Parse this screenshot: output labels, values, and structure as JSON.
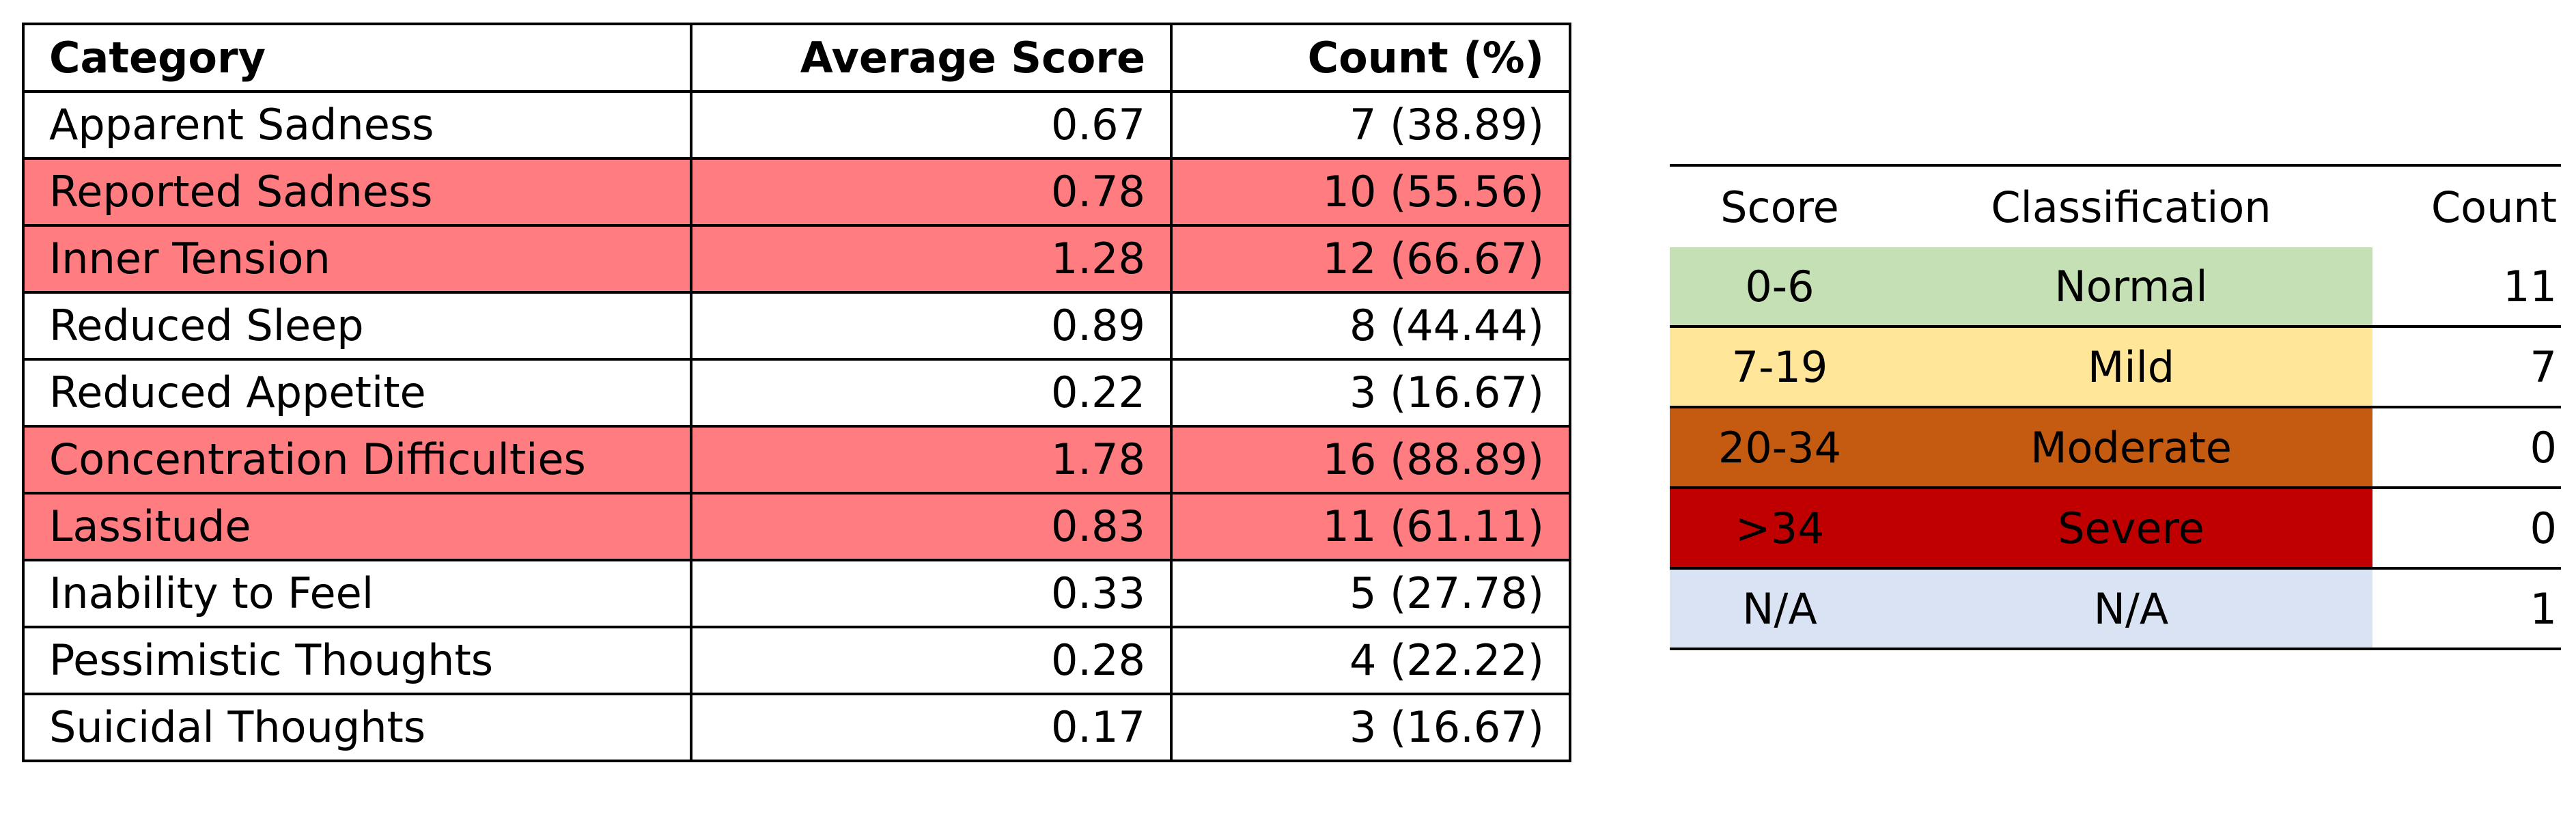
{
  "scores_table": {
    "headers": {
      "category": "Category",
      "average_score": "Average Score",
      "count": "Count (%)"
    },
    "highlight_color": "#ff7c80",
    "rows": [
      {
        "category": "Apparent Sadness",
        "average_score": "0.67",
        "count": "7 (38.89)",
        "highlighted": false
      },
      {
        "category": "Reported Sadness",
        "average_score": "0.78",
        "count": "10 (55.56)",
        "highlighted": true
      },
      {
        "category": "Inner Tension",
        "average_score": "1.28",
        "count": "12 (66.67)",
        "highlighted": true
      },
      {
        "category": "Reduced Sleep",
        "average_score": "0.89",
        "count": "8 (44.44)",
        "highlighted": false
      },
      {
        "category": "Reduced Appetite",
        "average_score": "0.22",
        "count": "3 (16.67)",
        "highlighted": false
      },
      {
        "category": "Concentration Difficulties",
        "average_score": "1.78",
        "count": "16 (88.89)",
        "highlighted": true
      },
      {
        "category": "Lassitude",
        "average_score": "0.83",
        "count": "11 (61.11)",
        "highlighted": true
      },
      {
        "category": "Inability to Feel",
        "average_score": "0.33",
        "count": "5 (27.78)",
        "highlighted": false
      },
      {
        "category": "Pessimistic Thoughts",
        "average_score": "0.28",
        "count": "4 (22.22)",
        "highlighted": false
      },
      {
        "category": "Suicidal Thoughts",
        "average_score": "0.17",
        "count": "3 (16.67)",
        "highlighted": false
      }
    ]
  },
  "classification_table": {
    "headers": {
      "score": "Score",
      "classification": "Classification",
      "count": "Count"
    },
    "rows": [
      {
        "score": "0-6",
        "classification": "Normal",
        "count": "11",
        "color": "#c5e0b4"
      },
      {
        "score": "7-19",
        "classification": "Mild",
        "count": "7",
        "color": "#ffe699"
      },
      {
        "score": "20-34",
        "classification": "Moderate",
        "count": "0",
        "color": "#c55a11"
      },
      {
        "score": ">34",
        "classification": "Severe",
        "count": "0",
        "color": "#c00000"
      },
      {
        "score": "N/A",
        "classification": "N/A",
        "count": "1",
        "color": "#dae3f3"
      }
    ]
  }
}
